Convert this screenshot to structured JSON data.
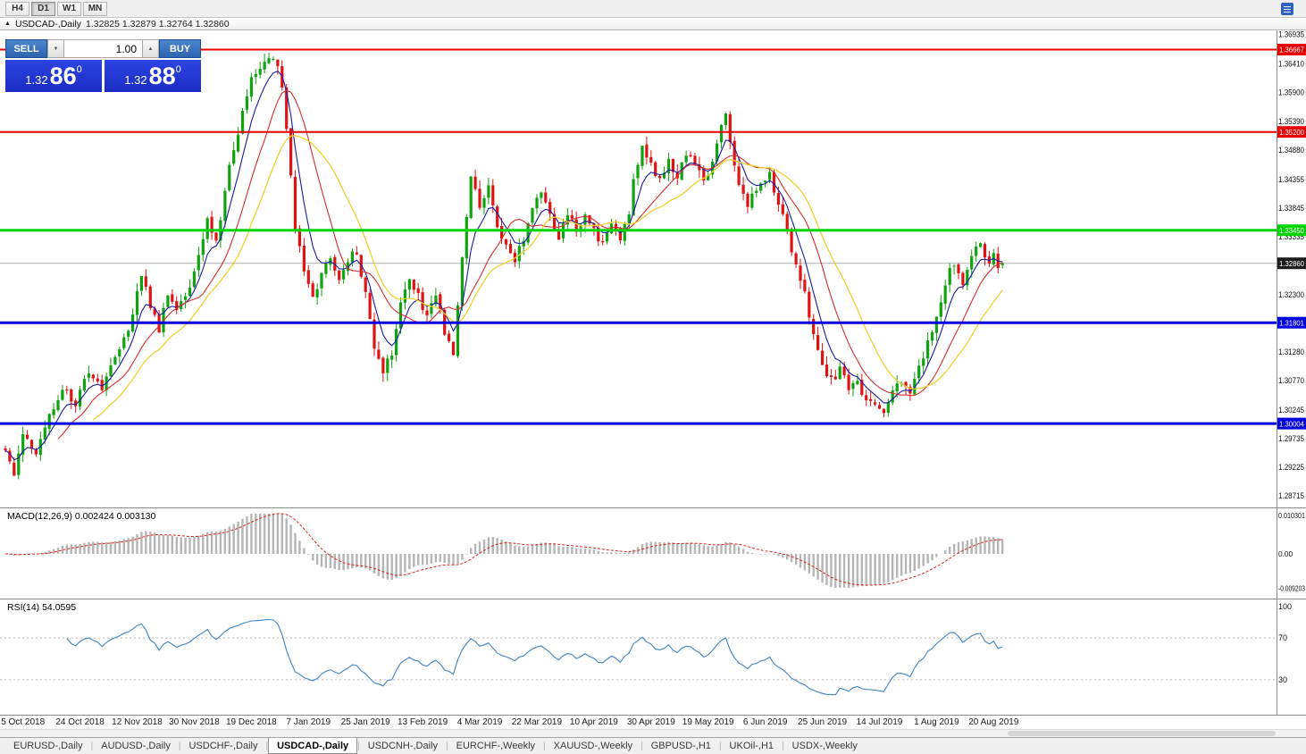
{
  "topbar": {
    "timeframes": [
      {
        "label": "H4",
        "active": false
      },
      {
        "label": "D1",
        "active": true
      },
      {
        "label": "W1",
        "active": false
      },
      {
        "label": "MN",
        "active": false
      }
    ]
  },
  "icons": {
    "collapse": "▲",
    "volume_down": "▼",
    "volume_up": "▲"
  },
  "caption": {
    "symbol": "USDCAD-,Daily",
    "ohlc": "1.32825 1.32879 1.32764 1.32860"
  },
  "trade_panel": {
    "sell_label": "SELL",
    "buy_label": "BUY",
    "volume": "1.00",
    "sell_price": {
      "base": "1.32",
      "big": "86",
      "sup": "0"
    },
    "buy_price": {
      "base": "1.32",
      "big": "88",
      "sup": "0"
    }
  },
  "main_chart": {
    "axis_labels": [
      "1.36935",
      "1.36410",
      "1.35900",
      "1.35390",
      "1.34880",
      "1.34355",
      "1.33845",
      "1.33335",
      "1.32300",
      "1.31280",
      "1.30770",
      "1.30245",
      "1.29735",
      "1.29225",
      "1.28715"
    ],
    "levels": [
      {
        "price": 1.36667,
        "label": "1.36667",
        "color": "#e60000",
        "width": 2
      },
      {
        "price": 1.352,
        "label": "1.35200",
        "color": "#e60000",
        "width": 2
      },
      {
        "price": 1.3345,
        "label": "1.33450",
        "color": "#00d500",
        "width": 3
      },
      {
        "price": 1.31801,
        "label": "1.31801",
        "color": "#0000dd",
        "width": 3
      },
      {
        "price": 1.30004,
        "label": "1.30004",
        "color": "#0000dd",
        "width": 3
      }
    ],
    "current_price": {
      "price": 1.3286,
      "label": "1.32860",
      "tag_color": "#1c1c1c",
      "line_color": "#b4b4b4"
    }
  },
  "macd_panel": {
    "header": "MACD(12,26,9) 0.002424 0.003130",
    "axis_labels": [
      {
        "v": 0.010301,
        "label": "0.010301"
      },
      {
        "v": 0,
        "label": "0.00"
      },
      {
        "v": -0.009203,
        "label": "-0.009203"
      }
    ]
  },
  "rsi_panel": {
    "header": "RSI(14) 54.0595",
    "axis_labels": [
      {
        "v": 100,
        "label": "100"
      },
      {
        "v": 70,
        "label": "70"
      },
      {
        "v": 30,
        "label": "30"
      }
    ],
    "level_lines": [
      70,
      30
    ]
  },
  "tabs": [
    {
      "label": "EURUSD-,Daily",
      "active": false
    },
    {
      "label": "AUDUSD-,Daily",
      "active": false
    },
    {
      "label": "USDCHF-,Daily",
      "active": false
    },
    {
      "label": "USDCAD-,Daily",
      "active": true
    },
    {
      "label": "USDCNH-,Daily",
      "active": false
    },
    {
      "label": "EURCHF-,Weekly",
      "active": false
    },
    {
      "label": "XAUUSD-,Weekly",
      "active": false
    },
    {
      "label": "GBPUSD-,H1",
      "active": false
    },
    {
      "label": "UKOil-,H1",
      "active": false
    },
    {
      "label": "USDX-,Weekly",
      "active": false
    }
  ],
  "chart_data": {
    "type": "candlestick",
    "symbol": "USDCAD",
    "timeframe": "Daily",
    "title": "USDCAD-,Daily",
    "candle_count": 228,
    "seed": 29,
    "price_axis_range": {
      "top": 1.3701,
      "bottom": 1.2851
    },
    "last_candle": {
      "o": 1.32825,
      "h": 1.32879,
      "l": 1.32764,
      "c": 1.3286
    },
    "noise": {
      "close": 0.0018,
      "gap": 0.0005,
      "wick": 0.0015
    },
    "colors": {
      "up": "#0fa30f",
      "down": "#e01313"
    },
    "close_waypoints": [
      [
        0,
        1.2958
      ],
      [
        2,
        1.2912
      ],
      [
        4,
        1.2978
      ],
      [
        7,
        1.295
      ],
      [
        10,
        1.3012
      ],
      [
        13,
        1.3065
      ],
      [
        16,
        1.3035
      ],
      [
        19,
        1.3092
      ],
      [
        22,
        1.3065
      ],
      [
        25,
        1.3115
      ],
      [
        28,
        1.3165
      ],
      [
        31,
        1.327
      ],
      [
        33,
        1.3215
      ],
      [
        35,
        1.316
      ],
      [
        37,
        1.3235
      ],
      [
        39,
        1.3195
      ],
      [
        42,
        1.3245
      ],
      [
        44,
        1.3305
      ],
      [
        46,
        1.336
      ],
      [
        48,
        1.332
      ],
      [
        50,
        1.342
      ],
      [
        52,
        1.3485
      ],
      [
        54,
        1.356
      ],
      [
        56,
        1.361
      ],
      [
        58,
        1.364
      ],
      [
        60,
        1.3655
      ],
      [
        62,
        1.3645
      ],
      [
        63,
        1.36
      ],
      [
        64,
        1.352
      ],
      [
        65,
        1.344
      ],
      [
        66,
        1.3355
      ],
      [
        68,
        1.327
      ],
      [
        70,
        1.3225
      ],
      [
        72,
        1.326
      ],
      [
        74,
        1.33
      ],
      [
        76,
        1.325
      ],
      [
        78,
        1.329
      ],
      [
        80,
        1.331
      ],
      [
        82,
        1.323
      ],
      [
        84,
        1.314
      ],
      [
        86,
        1.3085
      ],
      [
        88,
        1.313
      ],
      [
        90,
        1.322
      ],
      [
        92,
        1.326
      ],
      [
        94,
        1.3225
      ],
      [
        96,
        1.319
      ],
      [
        98,
        1.3235
      ],
      [
        100,
        1.316
      ],
      [
        102,
        1.312
      ],
      [
        104,
        1.33
      ],
      [
        106,
        1.344
      ],
      [
        108,
        1.339
      ],
      [
        110,
        1.342
      ],
      [
        112,
        1.3355
      ],
      [
        114,
        1.332
      ],
      [
        116,
        1.329
      ],
      [
        118,
        1.333
      ],
      [
        120,
        1.338
      ],
      [
        122,
        1.342
      ],
      [
        124,
        1.337
      ],
      [
        126,
        1.333
      ],
      [
        128,
        1.338
      ],
      [
        130,
        1.335
      ],
      [
        132,
        1.337
      ],
      [
        134,
        1.3345
      ],
      [
        136,
        1.332
      ],
      [
        138,
        1.336
      ],
      [
        140,
        1.333
      ],
      [
        142,
        1.338
      ],
      [
        143,
        1.344
      ],
      [
        145,
        1.35
      ],
      [
        147,
        1.346
      ],
      [
        149,
        1.343
      ],
      [
        151,
        1.347
      ],
      [
        153,
        1.344
      ],
      [
        155,
        1.348
      ],
      [
        157,
        1.3455
      ],
      [
        159,
        1.344
      ],
      [
        161,
        1.346
      ],
      [
        163,
        1.353
      ],
      [
        164,
        1.3555
      ],
      [
        165,
        1.3505
      ],
      [
        167,
        1.343
      ],
      [
        169,
        1.339
      ],
      [
        171,
        1.342
      ],
      [
        174,
        1.344
      ],
      [
        176,
        1.339
      ],
      [
        178,
        1.334
      ],
      [
        180,
        1.328
      ],
      [
        182,
        1.323
      ],
      [
        184,
        1.316
      ],
      [
        186,
        1.311
      ],
      [
        188,
        1.3075
      ],
      [
        190,
        1.3095
      ],
      [
        192,
        1.306
      ],
      [
        194,
        1.3075
      ],
      [
        196,
        1.3045
      ],
      [
        198,
        1.303
      ],
      [
        200,
        1.302
      ],
      [
        202,
        1.3055
      ],
      [
        204,
        1.308
      ],
      [
        206,
        1.3055
      ],
      [
        208,
        1.3095
      ],
      [
        210,
        1.314
      ],
      [
        212,
        1.319
      ],
      [
        214,
        1.3255
      ],
      [
        216,
        1.329
      ],
      [
        218,
        1.325
      ],
      [
        220,
        1.33
      ],
      [
        222,
        1.333
      ],
      [
        224,
        1.328
      ],
      [
        225,
        1.331
      ],
      [
        226,
        1.328
      ],
      [
        227,
        1.3286
      ]
    ],
    "date_ticks": [
      {
        "i": 4,
        "label": "5 Oct 2018"
      },
      {
        "i": 17,
        "label": "24 Oct 2018"
      },
      {
        "i": 30,
        "label": "12 Nov 2018"
      },
      {
        "i": 43,
        "label": "30 Nov 2018"
      },
      {
        "i": 56,
        "label": "19 Dec 2018"
      },
      {
        "i": 69,
        "label": "7 Jan 2019"
      },
      {
        "i": 82,
        "label": "25 Jan 2019"
      },
      {
        "i": 95,
        "label": "13 Feb 2019"
      },
      {
        "i": 108,
        "label": "4 Mar 2019"
      },
      {
        "i": 121,
        "label": "22 Mar 2019"
      },
      {
        "i": 134,
        "label": "10 Apr 2019"
      },
      {
        "i": 147,
        "label": "30 Apr 2019"
      },
      {
        "i": 160,
        "label": "19 May 2019"
      },
      {
        "i": 173,
        "label": "6 Jun 2019"
      },
      {
        "i": 186,
        "label": "25 Jun 2019"
      },
      {
        "i": 199,
        "label": "14 Jul 2019"
      },
      {
        "i": 212,
        "label": "1 Aug 2019"
      },
      {
        "i": 225,
        "label": "20 Aug 2019"
      }
    ],
    "moving_averages": [
      {
        "type": "ema",
        "period": 6,
        "color": "#1a1aa6",
        "width": 1.1
      },
      {
        "type": "sma",
        "period": 13,
        "color": "#d42e2e",
        "width": 1.1
      },
      {
        "type": "sma",
        "period": 21,
        "color": "#edd12f",
        "width": 1.3
      }
    ],
    "macd": {
      "fast": 12,
      "slow": 26,
      "signal": 9,
      "current": 0.002424,
      "current_signal": 0.00313,
      "colors": {
        "histogram": "#b5b5b5",
        "signal": "#dd2222"
      }
    },
    "rsi": {
      "period": 14,
      "current": 54.0595,
      "color": "#3d85c6"
    }
  }
}
